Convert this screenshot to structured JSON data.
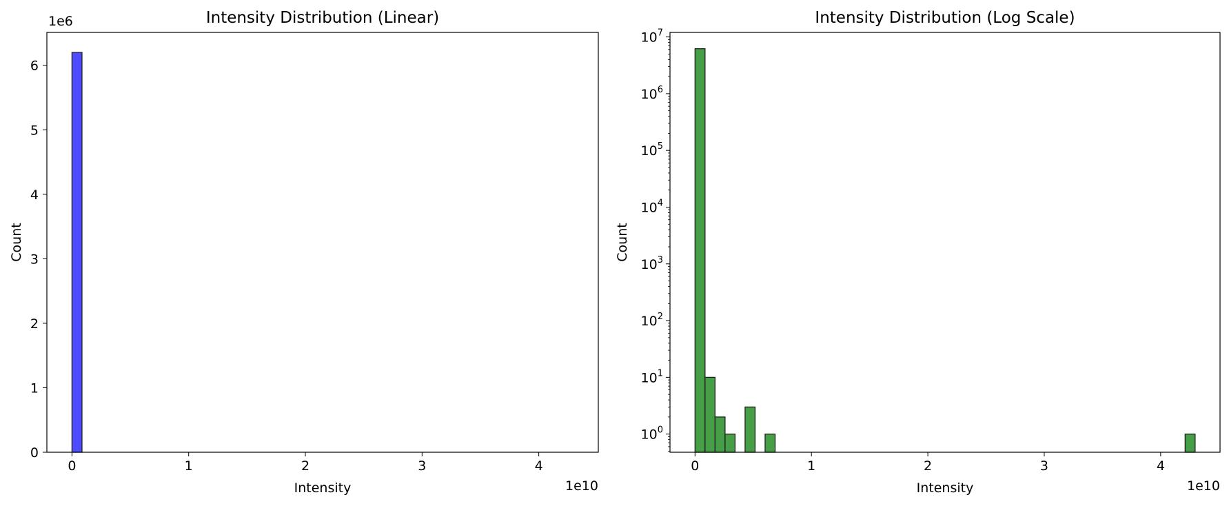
{
  "chart_data": [
    {
      "type": "bar",
      "title": "Intensity Distribution (Linear)",
      "xlabel": "Intensity",
      "ylabel": "Count",
      "x_offset_text": "1e10",
      "y_offset_text": "1e6",
      "x_scale": 10000000000.0,
      "y_scale": 1000000.0,
      "yscale": "linear",
      "xlim": [
        -2150000000.0,
        45100000000.0
      ],
      "ylim": [
        0,
        6510000.0
      ],
      "xticks": [
        0,
        10000000000.0,
        20000000000.0,
        30000000000.0,
        40000000000.0
      ],
      "xtick_labels": [
        "0",
        "1",
        "2",
        "3",
        "4"
      ],
      "yticks": [
        0,
        1000000.0,
        2000000.0,
        3000000.0,
        4000000.0,
        5000000.0,
        6000000.0
      ],
      "ytick_labels": [
        "0",
        "1",
        "2",
        "3",
        "4",
        "5",
        "6"
      ],
      "bar_color": "#4d4dff",
      "edge_color": "#1f1f1f",
      "bins": [
        {
          "x0": 0,
          "x1": 860000000.0,
          "count": 6200000
        }
      ]
    },
    {
      "type": "bar",
      "title": "Intensity Distribution (Log Scale)",
      "xlabel": "Intensity",
      "ylabel": "Count",
      "x_offset_text": "1e10",
      "x_scale": 10000000000.0,
      "yscale": "log",
      "xlim": [
        -2150000000.0,
        45100000000.0
      ],
      "ylim_exp": [
        -0.32,
        7.08
      ],
      "xticks": [
        0,
        10000000000.0,
        20000000000.0,
        30000000000.0,
        40000000000.0
      ],
      "xtick_labels": [
        "0",
        "1",
        "2",
        "3",
        "4"
      ],
      "ytick_exponents": [
        0,
        1,
        2,
        3,
        4,
        5,
        6,
        7
      ],
      "ytick_base": "10",
      "bar_color": "#469e46",
      "edge_color": "#1f1f1f",
      "bins": [
        {
          "x0": 0,
          "x1": 860000000.0,
          "count": 6200000
        },
        {
          "x0": 860000000.0,
          "x1": 1720000000.0,
          "count": 10
        },
        {
          "x0": 1720000000.0,
          "x1": 2580000000.0,
          "count": 2
        },
        {
          "x0": 2580000000.0,
          "x1": 3440000000.0,
          "count": 1
        },
        {
          "x0": 4300000000.0,
          "x1": 5160000000.0,
          "count": 3
        },
        {
          "x0": 6020000000.0,
          "x1": 6880000000.0,
          "count": 1
        },
        {
          "x0": 42100000000.0,
          "x1": 42960000000.0,
          "count": 1
        }
      ]
    }
  ]
}
